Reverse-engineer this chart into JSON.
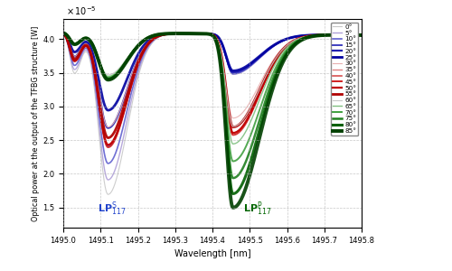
{
  "xlabel": "Wavelength [nm]",
  "ylabel": "Optical power at the output of the TFBG structure [W]",
  "xlim": [
    1495.0,
    1495.8
  ],
  "ylim": [
    1.2,
    4.3
  ],
  "yticks": [
    1.5,
    2.0,
    2.5,
    3.0,
    3.5,
    4.0
  ],
  "xticks": [
    1495.0,
    1495.1,
    1495.2,
    1495.3,
    1495.4,
    1495.5,
    1495.6,
    1495.7,
    1495.8
  ],
  "lps_x": 1495.13,
  "lps_y": 1.35,
  "lpp_x": 1495.52,
  "lpp_y": 1.35,
  "angles": [
    0,
    5,
    10,
    15,
    20,
    25,
    30,
    35,
    40,
    45,
    50,
    55,
    60,
    65,
    70,
    75,
    80,
    85
  ],
  "angle_colors": {
    "0": "#c8c8c8",
    "5": "#b0a0d8",
    "10": "#6060d0",
    "15": "#4040c0",
    "20": "#2020b0",
    "25": "#0000a0",
    "30": "#e8b0b0",
    "35": "#e08080",
    "40": "#d85050",
    "45": "#d02020",
    "50": "#c00000",
    "55": "#b00000",
    "60": "#c8c8c8",
    "65": "#80c080",
    "70": "#40a040",
    "75": "#208020",
    "80": "#006000",
    "85": "#004000"
  },
  "angle_lw": {
    "0": 0.8,
    "5": 1.0,
    "10": 1.2,
    "15": 1.4,
    "20": 1.6,
    "25": 2.0,
    "30": 0.8,
    "35": 1.0,
    "40": 1.2,
    "45": 1.4,
    "50": 1.6,
    "55": 2.0,
    "60": 0.8,
    "65": 1.0,
    "70": 1.4,
    "75": 1.8,
    "80": 2.2,
    "85": 2.8
  },
  "background_color": "#ffffff",
  "legend_entries": [
    {
      "color": "#c8c8c8",
      "lw": 0.8,
      "label": "0°"
    },
    {
      "color": "#b0a0d8",
      "lw": 1.0,
      "label": "5°"
    },
    {
      "color": "#6060d0",
      "lw": 1.2,
      "label": "10°"
    },
    {
      "color": "#4040c0",
      "lw": 1.4,
      "label": "15°"
    },
    {
      "color": "#2020b0",
      "lw": 1.6,
      "label": "20°"
    },
    {
      "color": "#0000a0",
      "lw": 2.0,
      "label": "25°"
    },
    {
      "color": "#e8b0b0",
      "lw": 0.8,
      "label": "30°"
    },
    {
      "color": "#e08080",
      "lw": 1.0,
      "label": "35°"
    },
    {
      "color": "#d85050",
      "lw": 1.2,
      "label": "40°"
    },
    {
      "color": "#d02020",
      "lw": 1.4,
      "label": "45°"
    },
    {
      "color": "#c00000",
      "lw": 1.6,
      "label": "50°"
    },
    {
      "color": "#b00000",
      "lw": 2.0,
      "label": "55°"
    },
    {
      "color": "#c8c8c8",
      "lw": 0.8,
      "label": "60°"
    },
    {
      "color": "#80c080",
      "lw": 1.0,
      "label": "65°"
    },
    {
      "color": "#40a040",
      "lw": 1.4,
      "label": "70°"
    },
    {
      "color": "#208020",
      "lw": 1.8,
      "label": "75°"
    },
    {
      "color": "#006000",
      "lw": 2.2,
      "label": "80°"
    },
    {
      "color": "#004000",
      "lw": 2.8,
      "label": "85°"
    }
  ]
}
